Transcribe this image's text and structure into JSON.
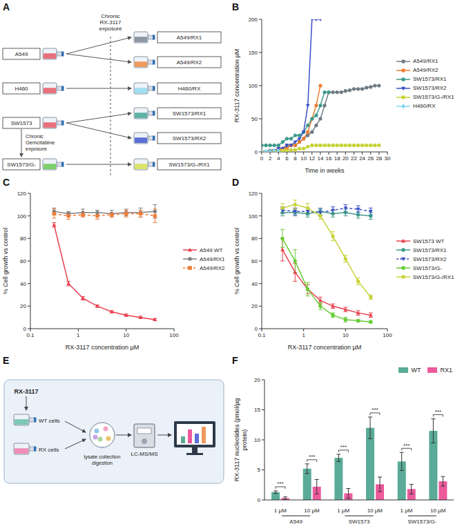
{
  "chart_data": [
    {
      "panel": "B",
      "type": "line",
      "x_label": "Time in weeks",
      "y_label": "RX-3117 concentration µM",
      "x": [
        0,
        1,
        2,
        3,
        4,
        5,
        6,
        7,
        8,
        9,
        10,
        11,
        12,
        13,
        14,
        15,
        16,
        17,
        18,
        19,
        20,
        21,
        22,
        23,
        24,
        25,
        26,
        27,
        28
      ],
      "xlim": [
        0,
        30
      ],
      "xticks": [
        0,
        2,
        4,
        6,
        8,
        10,
        12,
        14,
        16,
        18,
        20,
        22,
        24,
        26,
        28,
        30
      ],
      "ylim": [
        0,
        200
      ],
      "yticks": [
        0,
        50,
        100,
        150,
        200
      ],
      "legend": "right",
      "series": [
        {
          "name": "A549/RX1",
          "color": "#6e7b84",
          "marker": "circle",
          "line_style": "solid",
          "values": [
            0,
            0,
            2,
            2,
            5,
            5,
            10,
            10,
            10,
            15,
            20,
            25,
            30,
            40,
            50,
            70,
            90,
            90,
            90,
            90,
            92,
            93,
            95,
            95,
            95,
            97,
            98,
            100,
            100
          ]
        },
        {
          "name": "A549/RX2",
          "color": "#ee7d31",
          "marker": "circle",
          "line_style": "solid",
          "values": [
            0,
            0,
            1,
            2,
            3,
            5,
            5,
            10,
            10,
            15,
            20,
            30,
            50,
            70,
            100,
            null,
            null,
            null,
            null,
            null,
            null,
            null,
            null,
            null,
            null,
            null,
            null,
            null,
            null
          ]
        },
        {
          "name": "SW1573/RX1",
          "color": "#3f9a8c",
          "marker": "circle",
          "line_style": "solid",
          "values": [
            10,
            10,
            10,
            10,
            10,
            15,
            20,
            20,
            25,
            25,
            30,
            40,
            50,
            55,
            70,
            90,
            90,
            null,
            null,
            null,
            null,
            null,
            null,
            null,
            null,
            null,
            null,
            null,
            null
          ]
        },
        {
          "name": "SW1573/RX2",
          "color": "#3b4fc8",
          "marker": "triangle-down",
          "line_style": "solid",
          "values": [
            0,
            0,
            1,
            2,
            5,
            5,
            10,
            10,
            15,
            20,
            30,
            70,
            200,
            200,
            200,
            null,
            null,
            null,
            null,
            null,
            null,
            null,
            null,
            null,
            null,
            null,
            null,
            null,
            null
          ]
        },
        {
          "name": "SW1573/G-/RX1",
          "color": "#c8d23a",
          "marker": "circle",
          "line_style": "solid",
          "values": [
            0,
            0,
            0,
            1,
            1,
            2,
            2,
            3,
            3,
            5,
            5,
            8,
            10,
            10,
            10,
            10,
            10,
            10,
            10,
            10,
            10,
            10,
            10,
            10,
            10,
            10,
            10,
            10,
            10
          ]
        },
        {
          "name": "H460/RX",
          "color": "#7fd6ee",
          "marker": "diamond",
          "line_style": "solid",
          "values": [
            0,
            1,
            1,
            2,
            2,
            null,
            null,
            null,
            null,
            null,
            null,
            null,
            null,
            null,
            null,
            null,
            null,
            null,
            null,
            null,
            null,
            null,
            null,
            null,
            null,
            null,
            null,
            null,
            null
          ]
        }
      ]
    },
    {
      "panel": "C",
      "type": "line",
      "x_label": "RX-3117 concentration µM",
      "y_label": "% Cell growth vs control",
      "log": "x",
      "x": [
        0.3125,
        0.625,
        1.25,
        2.5,
        5,
        10,
        20,
        40
      ],
      "xlim": [
        0.1,
        100
      ],
      "xticks": [
        0.1,
        1,
        10,
        100
      ],
      "ylim": [
        0,
        120
      ],
      "yticks": [
        0,
        20,
        40,
        60,
        80,
        100,
        120
      ],
      "legend": "right",
      "series": [
        {
          "name": "A549 WT",
          "color": "#e8404e",
          "marker": "triangle",
          "line_style": "solid",
          "values": [
            92,
            40,
            27,
            20,
            15,
            12,
            10,
            8
          ],
          "errors": [
            2,
            2,
            1.5,
            1,
            1,
            1,
            1,
            1
          ]
        },
        {
          "name": "A549/RX1",
          "color": "#808080",
          "marker": "circle",
          "line_style": "solid",
          "values": [
            104,
            102,
            103,
            103,
            102,
            103,
            103,
            104
          ],
          "errors": [
            3,
            2,
            3,
            2,
            3,
            3,
            4,
            6
          ]
        },
        {
          "name": "A549/RX2",
          "color": "#f07c36",
          "marker": "square",
          "line_style": "dashed",
          "values": [
            102,
            100,
            101,
            100,
            101,
            102,
            102,
            100
          ],
          "errors": [
            4,
            3,
            2,
            3,
            2,
            3,
            3,
            6
          ]
        }
      ]
    },
    {
      "panel": "D",
      "type": "line",
      "x_label": "RX-3117 concentration µM",
      "y_label": "% Cell growth vs control",
      "log": "x",
      "x": [
        0.3125,
        0.625,
        1.25,
        2.5,
        5,
        10,
        20,
        40
      ],
      "xlim": [
        0.1,
        100
      ],
      "xticks": [
        0.1,
        1,
        10,
        100
      ],
      "ylim": [
        0,
        120
      ],
      "yticks": [
        0,
        20,
        40,
        60,
        80,
        100,
        120
      ],
      "legend": "right",
      "series": [
        {
          "name": "SW1573 WT",
          "color": "#e8404e",
          "marker": "triangle",
          "line_style": "solid",
          "values": [
            70,
            50,
            35,
            25,
            20,
            17,
            14,
            12
          ],
          "errors": [
            10,
            8,
            4,
            3,
            2,
            2,
            2,
            2
          ]
        },
        {
          "name": "SW1573/RX1",
          "color": "#3f9a8c",
          "marker": "circle",
          "line_style": "solid",
          "values": [
            103,
            103,
            102,
            104,
            102,
            103,
            101,
            100
          ],
          "errors": [
            3,
            3,
            3,
            3,
            3,
            3,
            3,
            3
          ]
        },
        {
          "name": "SW1573/RX2",
          "color": "#3b4fc8",
          "marker": "triangle-down",
          "line_style": "dashed",
          "values": [
            105,
            104,
            104,
            103,
            105,
            107,
            106,
            104
          ],
          "errors": [
            3,
            3,
            3,
            3,
            3,
            3,
            3,
            3
          ]
        },
        {
          "name": "SW1573/G-",
          "color": "#66cc33",
          "marker": "circle",
          "line_style": "solid",
          "values": [
            80,
            60,
            35,
            20,
            12,
            8,
            7,
            6
          ],
          "errors": [
            8,
            10,
            6,
            3,
            2,
            2,
            1,
            1
          ]
        },
        {
          "name": "SW1573/G-/RX1",
          "color": "#c8d23a",
          "marker": "circle",
          "line_style": "solid",
          "values": [
            107,
            110,
            107,
            100,
            82,
            62,
            42,
            28
          ],
          "errors": [
            4,
            4,
            4,
            3,
            4,
            3,
            3,
            2
          ]
        }
      ]
    },
    {
      "panel": "F",
      "type": "bar",
      "y_label": "RX-3117 nucleotides (pmol/µg protein)",
      "categories": [
        "1 µM",
        "10 µM",
        "1 µM",
        "10 µM",
        "1 µM",
        "10 µM"
      ],
      "groups": [
        "A549",
        "SW1573",
        "SW1573/G-"
      ],
      "ylim": [
        0,
        20
      ],
      "yticks": [
        0,
        5,
        10,
        15,
        20
      ],
      "legend": "top",
      "annotations": [
        "***",
        "***",
        "***",
        "***",
        "***",
        "***"
      ],
      "series": [
        {
          "name": "WT",
          "color": "#5aab97",
          "values": [
            1.3,
            5.2,
            7.0,
            12.0,
            6.4,
            11.5
          ],
          "errors": [
            0.2,
            0.8,
            0.6,
            1.8,
            1.5,
            2.0
          ]
        },
        {
          "name": "RX1",
          "color": "#ec5a9c",
          "values": [
            0.3,
            2.2,
            1.1,
            2.6,
            1.8,
            3.1
          ],
          "errors": [
            0.2,
            1.2,
            0.8,
            1.2,
            0.8,
            0.8
          ]
        }
      ]
    }
  ],
  "diagram_A": {
    "panel": "A",
    "header": "Chronic RX-3117 exposure",
    "side_label": "Chronic Gemcitabine exposure",
    "parents": [
      "A549",
      "H460",
      "SW1573",
      "SW1573/G-"
    ],
    "derived": [
      {
        "label": "A549/RX1",
        "from": "A549"
      },
      {
        "label": "A549/RX2",
        "from": "A549"
      },
      {
        "label": "H460/RX",
        "from": "H460"
      },
      {
        "label": "SW1573/RX1",
        "from": "SW1573"
      },
      {
        "label": "SW1573/RX2",
        "from": "SW1573"
      },
      {
        "label": "SW1573/G-/RX1",
        "from": "SW1573/G-"
      }
    ]
  },
  "diagram_E": {
    "panel": "E",
    "drug": "RX-3117",
    "cells": [
      "WT cells",
      "RX cells"
    ],
    "step": "lysate collection digestion",
    "instrument": "LC-MS/MS"
  }
}
